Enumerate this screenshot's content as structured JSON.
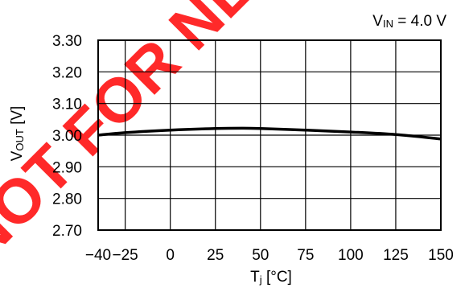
{
  "chart_data": {
    "type": "line",
    "condition_label": {
      "prefix": "V",
      "sub": "IN",
      "suffix": " = 4.0 V"
    },
    "xlabel": {
      "prefix": "T",
      "sub": "j",
      "suffix": " [°C]"
    },
    "ylabel": {
      "prefix": "V",
      "sub": "OUT",
      "suffix": " [V]"
    },
    "xlim": [
      -40,
      150
    ],
    "ylim": [
      2.7,
      3.3
    ],
    "x_ticks": [
      {
        "value": -40,
        "label": "−40"
      },
      {
        "value": -25,
        "label": "−25"
      },
      {
        "value": 0,
        "label": "0"
      },
      {
        "value": 25,
        "label": "25"
      },
      {
        "value": 50,
        "label": "50"
      },
      {
        "value": 75,
        "label": "75"
      },
      {
        "value": 100,
        "label": "100"
      },
      {
        "value": 125,
        "label": "125"
      },
      {
        "value": 150,
        "label": "150"
      }
    ],
    "y_ticks": [
      {
        "value": 2.7,
        "label": "2.70"
      },
      {
        "value": 2.8,
        "label": "2.80"
      },
      {
        "value": 2.9,
        "label": "2.90"
      },
      {
        "value": 3.0,
        "label": "3.00"
      },
      {
        "value": 3.1,
        "label": "3.10"
      },
      {
        "value": 3.2,
        "label": "3.20"
      },
      {
        "value": 3.3,
        "label": "3.30"
      }
    ],
    "grid": true,
    "series": [
      {
        "x": [
          -40,
          -25,
          0,
          25,
          40,
          50,
          75,
          100,
          125,
          150
        ],
        "y": [
          3.0,
          3.008,
          3.016,
          3.021,
          3.022,
          3.021,
          3.016,
          3.01,
          3.002,
          2.988
        ]
      }
    ],
    "colors": {
      "line": "#000000",
      "grid": "#000000",
      "watermark": "#ff0000"
    }
  }
}
